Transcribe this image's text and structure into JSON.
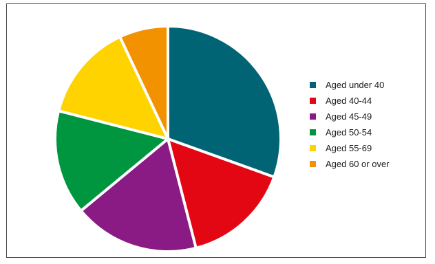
{
  "chart_data": {
    "type": "pie",
    "title": "",
    "start_angle": 0,
    "direction": "clockwise",
    "legend_position": "right",
    "series": [
      {
        "name": "Aged under 40",
        "value": 30.5,
        "color": "#006474"
      },
      {
        "name": "Aged 40-44",
        "value": 15.5,
        "color": "#e30613"
      },
      {
        "name": "Aged 45-49",
        "value": 18.0,
        "color": "#8b1b84"
      },
      {
        "name": "Aged 50-54",
        "value": 15.0,
        "color": "#00963f"
      },
      {
        "name": "Aged 55-69",
        "value": 14.0,
        "color": "#ffd300"
      },
      {
        "name": "Aged 60 or over",
        "value": 7.0,
        "color": "#f39200"
      }
    ]
  }
}
